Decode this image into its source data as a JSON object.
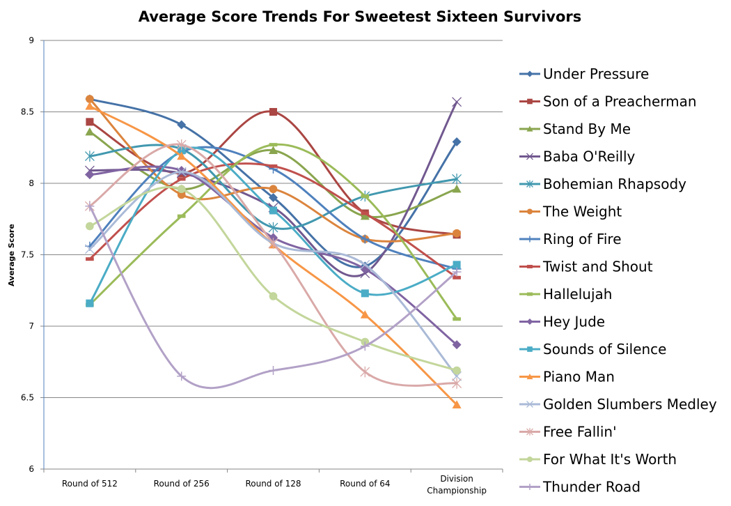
{
  "chart_data": {
    "type": "line",
    "title": "Average Score Trends For Sweetest Sixteen Survivors",
    "xlabel": "",
    "ylabel": "Average Score",
    "categories": [
      "Round of 512",
      "Round of 256",
      "Round of 128",
      "Round of 64",
      "Division Championship"
    ],
    "ylim": [
      6,
      9
    ],
    "yticks": [
      "6",
      "6.5",
      "7",
      "7.5",
      "8",
      "8.5",
      "9"
    ],
    "grid": true,
    "smoothed": true,
    "legend_position": "right",
    "series": [
      {
        "name": "Under Pressure",
        "color": "#4572A7",
        "marker": "diamond",
        "values": [
          8.59,
          8.41,
          7.9,
          7.42,
          8.29
        ]
      },
      {
        "name": "Son of a Preacherman",
        "color": "#AA4643",
        "marker": "square",
        "values": [
          8.43,
          8.07,
          8.5,
          7.79,
          7.64
        ]
      },
      {
        "name": "Stand By Me",
        "color": "#89A54E",
        "marker": "triangle",
        "values": [
          8.36,
          7.96,
          8.23,
          7.77,
          7.96
        ]
      },
      {
        "name": "Baba O'Reilly",
        "color": "#71588F",
        "marker": "x",
        "values": [
          8.09,
          8.07,
          7.83,
          7.37,
          8.57
        ]
      },
      {
        "name": "Bohemian Rhapsody",
        "color": "#4198AF",
        "marker": "star",
        "values": [
          8.19,
          8.24,
          7.69,
          7.91,
          8.03
        ]
      },
      {
        "name": "The Weight",
        "color": "#DB843D",
        "marker": "circle",
        "values": [
          8.59,
          7.92,
          7.96,
          7.61,
          7.65
        ]
      },
      {
        "name": "Ring of Fire",
        "color": "#4F81BD",
        "marker": "plus",
        "values": [
          7.56,
          8.22,
          8.1,
          7.61,
          7.4
        ]
      },
      {
        "name": "Twist and Shout",
        "color": "#C0504D",
        "marker": "dash",
        "values": [
          7.47,
          8.03,
          8.12,
          7.79,
          7.34
        ]
      },
      {
        "name": "Hallelujah",
        "color": "#9BBB59",
        "marker": "dash",
        "values": [
          7.15,
          7.77,
          8.27,
          7.91,
          7.05
        ]
      },
      {
        "name": "Hey Jude",
        "color": "#8064A2",
        "marker": "diamond",
        "values": [
          8.06,
          8.09,
          7.62,
          7.4,
          6.87
        ]
      },
      {
        "name": "Sounds of Silence",
        "color": "#4BACC6",
        "marker": "square",
        "values": [
          7.16,
          8.23,
          7.81,
          7.23,
          7.43
        ]
      },
      {
        "name": "Piano Man",
        "color": "#F79646",
        "marker": "triangle",
        "values": [
          8.54,
          8.19,
          7.57,
          7.08,
          6.45
        ]
      },
      {
        "name": "Golden Slumbers Medley",
        "color": "#AABAD7",
        "marker": "x",
        "values": [
          7.54,
          8.08,
          7.58,
          7.43,
          6.65
        ]
      },
      {
        "name": "Free Fallin'",
        "color": "#D9A9A8",
        "marker": "star",
        "values": [
          7.84,
          8.27,
          7.58,
          6.68,
          6.6
        ]
      },
      {
        "name": "For What It's Worth",
        "color": "#C3D69B",
        "marker": "circle",
        "values": [
          7.7,
          7.96,
          7.21,
          6.89,
          6.69
        ]
      },
      {
        "name": "Thunder Road",
        "color": "#B2A1C7",
        "marker": "plus",
        "values": [
          7.84,
          6.65,
          6.69,
          6.86,
          7.38
        ]
      }
    ]
  }
}
